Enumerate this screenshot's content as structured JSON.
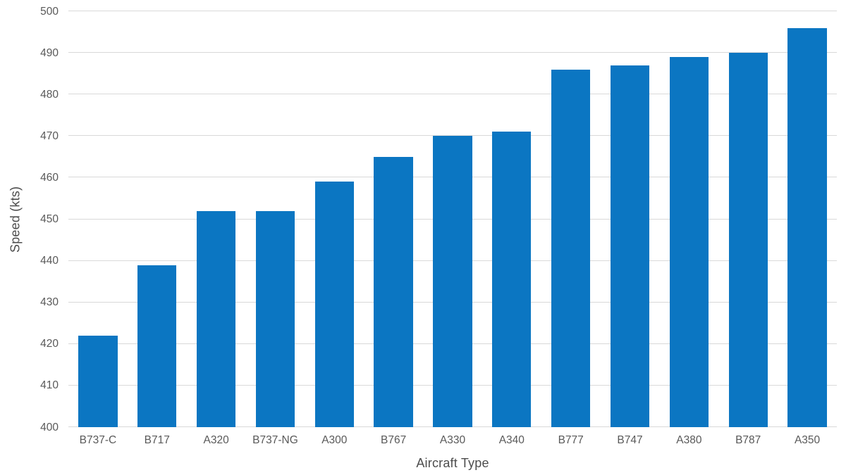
{
  "chart_data": {
    "type": "bar",
    "categories": [
      "B737-C",
      "B717",
      "A320",
      "B737-NG",
      "A300",
      "B767",
      "A330",
      "A340",
      "B777",
      "B747",
      "A380",
      "B787",
      "A350"
    ],
    "values": [
      422,
      439,
      452,
      452,
      459,
      465,
      470,
      471,
      486,
      487,
      489,
      490,
      496
    ],
    "xlabel": "Aircraft Type",
    "ylabel": "Speed (kts)",
    "ylim": [
      400,
      500
    ],
    "ytick_step": 10,
    "grid": true,
    "legend": false,
    "colors": {
      "bar": "#0B76C2",
      "gridline": "#D9D9D9",
      "axis_line": "#D9D9D9",
      "tick_text": "#595959",
      "axis_title_text": "#4D4D4D",
      "background": "#FFFFFF"
    }
  }
}
